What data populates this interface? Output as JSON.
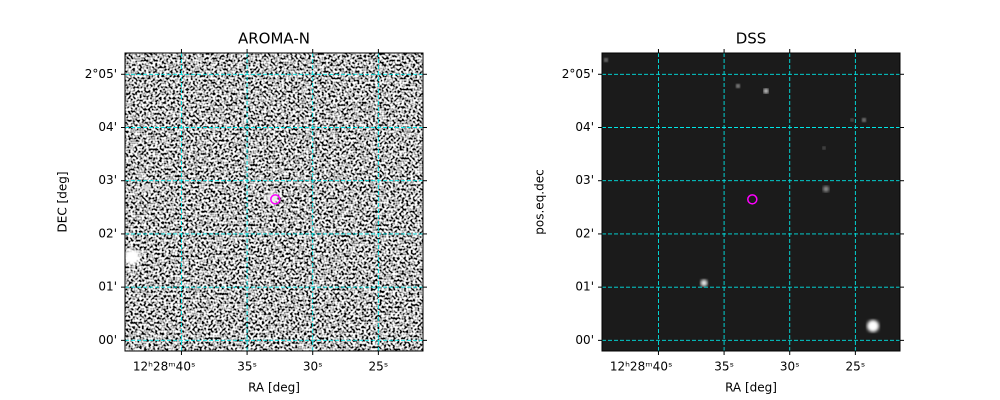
{
  "chart_data": [
    {
      "type": "image",
      "title": "AROMA-N",
      "xlabel": "RA [deg]",
      "ylabel": "DEC [deg]",
      "xlim": [
        44.3,
        21.6
      ],
      "ylim": [
        -0.2,
        5.4
      ],
      "xticks": [
        {
          "value": 40,
          "label": "12ʰ28ᵐ40ˢ"
        },
        {
          "value": 35,
          "label": "35ˢ"
        },
        {
          "value": 30,
          "label": "30ˢ"
        },
        {
          "value": 25,
          "label": "25ˢ"
        }
      ],
      "yticks": [
        {
          "value": 0,
          "label": "00'"
        },
        {
          "value": 1,
          "label": "01'"
        },
        {
          "value": 2,
          "label": "02'"
        },
        {
          "value": 3,
          "label": "03'"
        },
        {
          "value": 4,
          "label": "04'"
        },
        {
          "value": 5,
          "label": "2°05'"
        }
      ],
      "grid": true,
      "grid_color": "#00e5e5",
      "marker": {
        "x": 32.85,
        "y": 2.65,
        "color": "#ff00ff"
      }
    },
    {
      "type": "image",
      "title": "DSS",
      "xlabel": "RA [deg]",
      "ylabel": "pos.eq.dec",
      "xlim": [
        44.3,
        21.6
      ],
      "ylim": [
        -0.2,
        5.4
      ],
      "xticks": [
        {
          "value": 40,
          "label": "12ʰ28ᵐ40ˢ"
        },
        {
          "value": 35,
          "label": "35ˢ"
        },
        {
          "value": 30,
          "label": "30ˢ"
        },
        {
          "value": 25,
          "label": "25ˢ"
        }
      ],
      "yticks": [
        {
          "value": 0,
          "label": "00'"
        },
        {
          "value": 1,
          "label": "01'"
        },
        {
          "value": 2,
          "label": "02'"
        },
        {
          "value": 3,
          "label": "03'"
        },
        {
          "value": 4,
          "label": "04'"
        },
        {
          "value": 5,
          "label": "2°05'"
        }
      ],
      "grid": true,
      "grid_color": "#00e5e5",
      "marker": {
        "x": 32.85,
        "y": 2.65,
        "color": "#ff00ff"
      }
    }
  ]
}
